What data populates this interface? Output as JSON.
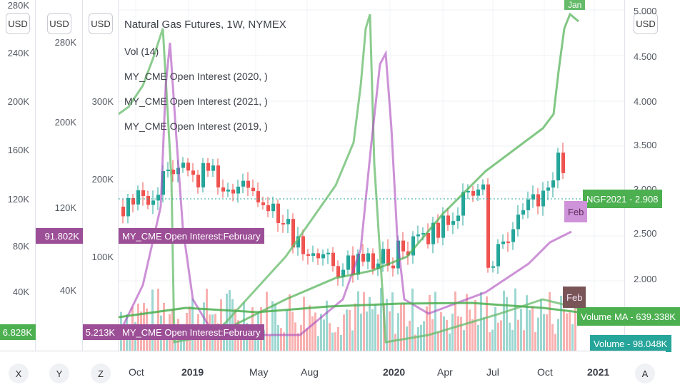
{
  "chart_data": {
    "type": "line",
    "legend": {
      "items": [
        {
          "text": "Natural Gas Futures, 1W, NYMEX"
        },
        {
          "text": "Vol (14)"
        },
        {
          "text": "MY_CME Open Interest (2020, )"
        },
        {
          "text": "MY_CME Open Interest (2021, )"
        },
        {
          "text": "MY_CME Open Interest (2019, )"
        }
      ]
    },
    "time_axis": {
      "ticks": [
        {
          "label": "Oct",
          "bold": false
        },
        {
          "label": "2019",
          "bold": true
        },
        {
          "label": "May",
          "bold": false
        },
        {
          "label": "Aug",
          "bold": false
        },
        {
          "label": "2020",
          "bold": true
        },
        {
          "label": "Apr",
          "bold": false
        },
        {
          "label": "Jul",
          "bold": false
        },
        {
          "label": "Oct",
          "bold": false
        },
        {
          "label": "2021",
          "bold": true
        }
      ]
    },
    "axes": {
      "x_scale": {
        "button": "X",
        "ticks": [
          "280K",
          "240K",
          "200K",
          "160K",
          "120K",
          "80K",
          "40K"
        ]
      },
      "y_scale": {
        "button": "Y",
        "ticks": [
          "280K",
          "200K",
          "120K",
          "40K"
        ]
      },
      "z_scale": {
        "button": "Z",
        "ticks": [
          "300K",
          "200K",
          "100K"
        ]
      },
      "price_scale": {
        "button": "A",
        "ticks": [
          "5.000",
          "4.500",
          "4.000",
          "3.500",
          "3.000",
          "2.500",
          "2.000"
        ]
      }
    },
    "currency_label": "USD",
    "series": [
      {
        "name": "NGF2021",
        "type": "candlestick",
        "color_up": "#26a69a",
        "color_down": "#ef5350",
        "last_label": "NGF2021 - 2.908"
      },
      {
        "name": "Volume",
        "type": "histogram",
        "last_label": "Volume - 98.048K"
      },
      {
        "name": "Volume MA",
        "type": "line",
        "color": "#4caf50",
        "last_label": "Volume MA - 639.338K"
      },
      {
        "name": "MY_CME Open Interest (2020, )",
        "color": "#66bb6a"
      },
      {
        "name": "MY_CME Open Interest (2021, )",
        "color": "#4caf50"
      },
      {
        "name": "MY_CME Open Interest (2019, )",
        "color": "#ab47bc"
      }
    ],
    "scale_tags": [
      {
        "text": "91.802K",
        "color": "#9c4f96"
      },
      {
        "text": "MY_CME Open Interest:February",
        "color": "#9c4f96"
      },
      {
        "text": "5.213K",
        "color": "#9c4f96"
      },
      {
        "text": "MY_CME Open Interest:February",
        "color": "#9c4f96"
      },
      {
        "text": "6.828K",
        "color": "#4caf50"
      }
    ],
    "annotations": [
      {
        "text": "Jan",
        "color": "#66bb6a"
      },
      {
        "text": "Feb",
        "color": "#ce93d8"
      },
      {
        "text": "Feb",
        "color": "#795558"
      }
    ]
  }
}
